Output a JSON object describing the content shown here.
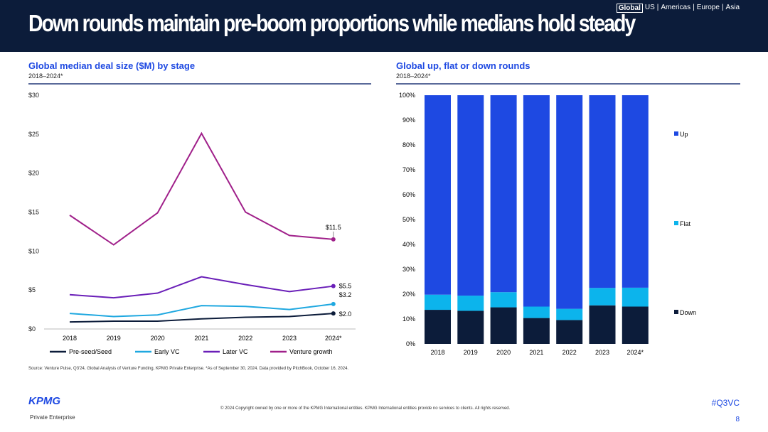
{
  "header": {
    "title": "Down rounds maintain pre-boom proportions while medians hold steady",
    "regions": [
      "Global",
      "US",
      "Americas",
      "Europe",
      "Asia"
    ],
    "active_region": "Global"
  },
  "colors": {
    "accent": "#1e49e2",
    "navy": "#0c1c3a"
  },
  "chart_data": [
    {
      "type": "line",
      "title": "Global median deal size ($M) by stage",
      "subtitle": "2018–2024*",
      "categories": [
        "2018",
        "2019",
        "2020",
        "2021",
        "2022",
        "2023",
        "2024*"
      ],
      "ylim": [
        0,
        30
      ],
      "yticks": [
        "$0",
        "$5",
        "$10",
        "$15",
        "$20",
        "$25",
        "$30"
      ],
      "ytick_values": [
        0,
        5,
        10,
        15,
        20,
        25,
        30
      ],
      "legend": "bottom",
      "grid": false,
      "series": [
        {
          "name": "Pre-seed/Seed",
          "color": "#0c1c3a",
          "values": [
            0.9,
            1.0,
            1.0,
            1.3,
            1.5,
            1.6,
            2.0
          ],
          "end_label": "$2.0"
        },
        {
          "name": "Early VC",
          "color": "#1fa8e0",
          "values": [
            2.0,
            1.6,
            1.8,
            3.0,
            2.9,
            2.5,
            3.2
          ],
          "end_label": "$3.2"
        },
        {
          "name": "Later VC",
          "color": "#6a1fb8",
          "values": [
            4.4,
            4.0,
            4.6,
            6.7,
            5.7,
            4.8,
            5.5
          ],
          "end_label": "$5.5"
        },
        {
          "name": "Venture growth",
          "color": "#a0208a",
          "values": [
            14.6,
            10.8,
            14.9,
            25.1,
            15.0,
            12.0,
            11.5
          ],
          "end_label": "$11.5"
        }
      ]
    },
    {
      "type": "bar",
      "stacked": true,
      "title": "Global up, flat or down rounds",
      "subtitle": "2018–2024*",
      "categories": [
        "2018",
        "2019",
        "2020",
        "2021",
        "2022",
        "2023",
        "2024*"
      ],
      "ylim": [
        0,
        100
      ],
      "yticks": [
        "0%",
        "10%",
        "20%",
        "30%",
        "40%",
        "50%",
        "60%",
        "70%",
        "80%",
        "90%",
        "100%"
      ],
      "legend": "right",
      "series": [
        {
          "name": "Down",
          "color": "#0c1c3a",
          "values": [
            13.7,
            13.3,
            14.7,
            10.4,
            9.6,
            15.5,
            15.0
          ]
        },
        {
          "name": "Flat",
          "color": "#0cb4ec",
          "values": [
            6.1,
            6.1,
            6.1,
            4.6,
            4.5,
            7.0,
            7.6
          ]
        },
        {
          "name": "Up",
          "color": "#1e49e2",
          "values": [
            80.2,
            80.6,
            79.2,
            85.0,
            85.9,
            77.5,
            77.4
          ]
        }
      ]
    }
  ],
  "footer": {
    "source": "Source: Venture Pulse, Q3'24, Global Analysis of Venture Funding, KPMG Private Enterprise. *As of September 30, 2024. Data provided by PitchBook, October 16, 2024.",
    "copyright": "© 2024 Copyright owned by one or more of the KPMG International entities. KPMG International entities provide no services to clients. All rights reserved.",
    "hashtag": "#Q3VC",
    "page": "8",
    "logo": "KPMG",
    "logo_sub": "Private Enterprise"
  }
}
